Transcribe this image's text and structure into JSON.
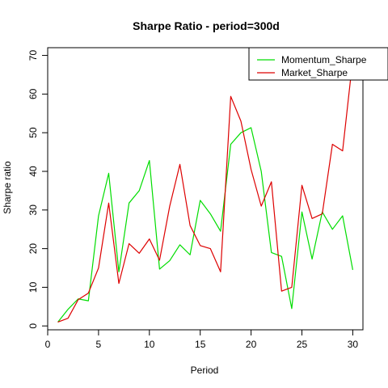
{
  "chart_data": {
    "type": "line",
    "title": "Sharpe Ratio - period=300d",
    "xlabel": "Period",
    "ylabel": "Sharpe ratio",
    "xlim": [
      0,
      31
    ],
    "ylim": [
      -1,
      72
    ],
    "xticks": [
      0,
      5,
      10,
      15,
      20,
      25,
      30
    ],
    "yticks": [
      0,
      10,
      20,
      30,
      40,
      50,
      60,
      70
    ],
    "grid": false,
    "legend_position": "top-right",
    "x": [
      1,
      2,
      3,
      4,
      5,
      6,
      7,
      8,
      9,
      10,
      11,
      12,
      13,
      14,
      15,
      16,
      17,
      18,
      19,
      20,
      21,
      22,
      23,
      24,
      25,
      26,
      27,
      28,
      29,
      30
    ],
    "series": [
      {
        "name": "Momentum_Sharpe",
        "color": "#00dd00",
        "values": [
          1.0,
          4.3,
          7.0,
          6.5,
          28.5,
          39.5,
          14.0,
          31.8,
          35.0,
          42.8,
          14.7,
          16.9,
          21.0,
          18.4,
          32.5,
          29.0,
          24.5,
          47.0,
          50.0,
          51.3,
          40.0,
          19.0,
          18.0,
          4.5,
          29.5,
          17.3,
          29.5,
          25.0,
          28.5,
          14.5
        ]
      },
      {
        "name": "Market_Sharpe",
        "color": "#dd0000",
        "values": [
          1.0,
          2.0,
          6.8,
          8.5,
          15.0,
          31.8,
          11.0,
          21.3,
          18.8,
          22.5,
          17.0,
          31.0,
          41.8,
          26.0,
          20.8,
          20.0,
          14.0,
          59.4,
          53.0,
          40.5,
          31.0,
          37.3,
          9.0,
          10.0,
          36.4,
          27.8,
          29.0,
          47.0,
          45.3,
          69.0
        ]
      }
    ]
  }
}
